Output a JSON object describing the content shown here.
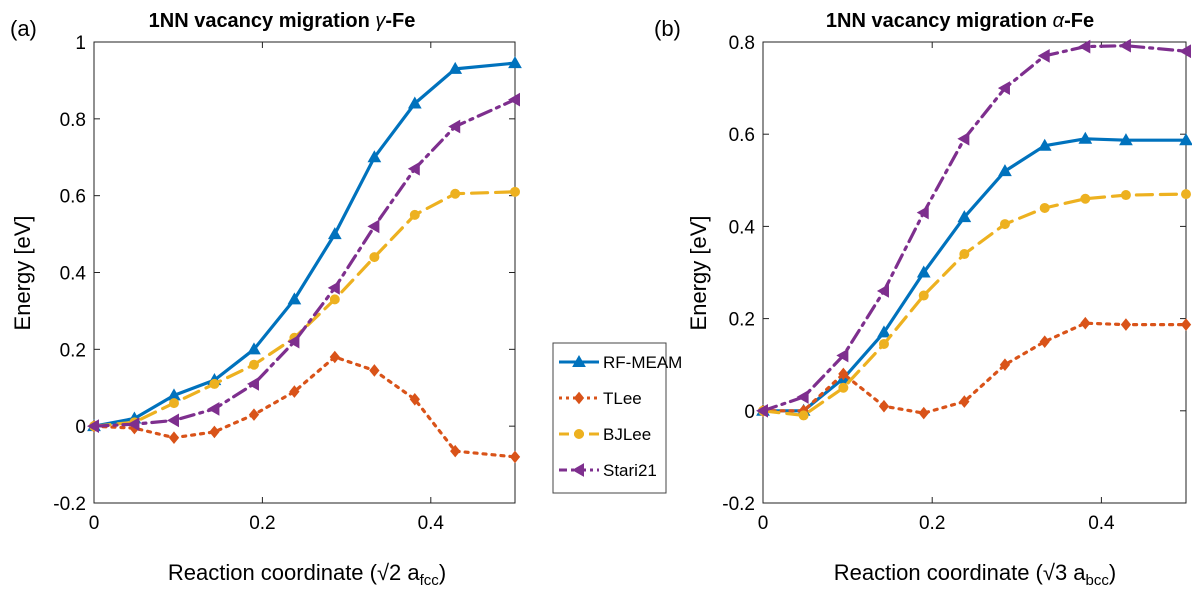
{
  "chart_data": [
    {
      "type": "line",
      "panel_label": "(a)",
      "title": {
        "prefix": "1NN vacancy migration ",
        "symbol": "γ",
        "suffix": "-Fe"
      },
      "xlabel": {
        "prefix": "Reaction coordinate (√2 a",
        "sub": "fcc",
        "suffix": ")"
      },
      "ylabel": "Energy [eV]",
      "xlim": [
        0,
        0.5
      ],
      "ylim": [
        -0.2,
        1.0
      ],
      "xticks": [
        0,
        0.2,
        0.4
      ],
      "xtick_labels": [
        "0",
        "0.2",
        "0.4"
      ],
      "yticks": [
        -0.2,
        0,
        0.2,
        0.4,
        0.6,
        0.8,
        1.0
      ],
      "ytick_labels": [
        "-0.2",
        "0",
        "0.2",
        "0.4",
        "0.6",
        "0.8",
        "1"
      ],
      "grid": false,
      "x": [
        0,
        0.048,
        0.095,
        0.143,
        0.19,
        0.238,
        0.286,
        0.333,
        0.381,
        0.429,
        0.5
      ],
      "series": [
        {
          "name": "RF-MEAM",
          "values": [
            0,
            0.02,
            0.08,
            0.12,
            0.2,
            0.33,
            0.5,
            0.7,
            0.84,
            0.93,
            0.945
          ]
        },
        {
          "name": "TLee",
          "values": [
            0,
            -0.005,
            -0.03,
            -0.015,
            0.03,
            0.09,
            0.18,
            0.145,
            0.07,
            -0.065,
            -0.08
          ]
        },
        {
          "name": "BJLee",
          "values": [
            0,
            0.01,
            0.06,
            0.11,
            0.16,
            0.23,
            0.33,
            0.44,
            0.55,
            0.605,
            0.61
          ]
        },
        {
          "name": "Stari21",
          "values": [
            0,
            0.005,
            0.015,
            0.045,
            0.11,
            0.22,
            0.36,
            0.52,
            0.67,
            0.78,
            0.85
          ]
        }
      ]
    },
    {
      "type": "line",
      "panel_label": "(b)",
      "title": {
        "prefix": "1NN vacancy migration ",
        "symbol": "α",
        "suffix": "-Fe"
      },
      "xlabel": {
        "prefix": "Reaction coordinate (√3 a",
        "sub": "bcc",
        "suffix": ")"
      },
      "ylabel": "Energy [eV]",
      "xlim": [
        0,
        0.5
      ],
      "ylim": [
        -0.2,
        0.8
      ],
      "xticks": [
        0,
        0.2,
        0.4
      ],
      "xtick_labels": [
        "0",
        "0.2",
        "0.4"
      ],
      "yticks": [
        -0.2,
        0,
        0.2,
        0.4,
        0.6,
        0.8
      ],
      "ytick_labels": [
        "-0.2",
        "0",
        "0.2",
        "0.4",
        "0.6",
        "0.8"
      ],
      "grid": false,
      "x": [
        0,
        0.048,
        0.095,
        0.143,
        0.19,
        0.238,
        0.286,
        0.333,
        0.381,
        0.429,
        0.5
      ],
      "series": [
        {
          "name": "RF-MEAM",
          "values": [
            0,
            0.0,
            0.07,
            0.17,
            0.3,
            0.42,
            0.52,
            0.575,
            0.59,
            0.587,
            0.587
          ]
        },
        {
          "name": "TLee",
          "values": [
            0,
            0.0,
            0.08,
            0.01,
            -0.005,
            0.02,
            0.1,
            0.15,
            0.19,
            0.187,
            0.187
          ]
        },
        {
          "name": "BJLee",
          "values": [
            0,
            -0.01,
            0.05,
            0.145,
            0.25,
            0.34,
            0.405,
            0.44,
            0.46,
            0.468,
            0.47
          ]
        },
        {
          "name": "Stari21",
          "values": [
            0,
            0.03,
            0.12,
            0.26,
            0.43,
            0.59,
            0.7,
            0.77,
            0.79,
            0.792,
            0.78
          ]
        }
      ]
    }
  ],
  "legend": {
    "placement": "between-panels",
    "entries": [
      {
        "name": "RF-MEAM",
        "color": "#0072BD",
        "dash": "solid",
        "marker": "triangle-up"
      },
      {
        "name": "TLee",
        "color": "#D95319",
        "dash": "dotted",
        "marker": "diamond"
      },
      {
        "name": "BJLee",
        "color": "#EDB120",
        "dash": "dashed",
        "marker": "circle"
      },
      {
        "name": "Stari21",
        "color": "#7E2F8E",
        "dash": "dashdot",
        "marker": "triangle-left"
      }
    ]
  }
}
